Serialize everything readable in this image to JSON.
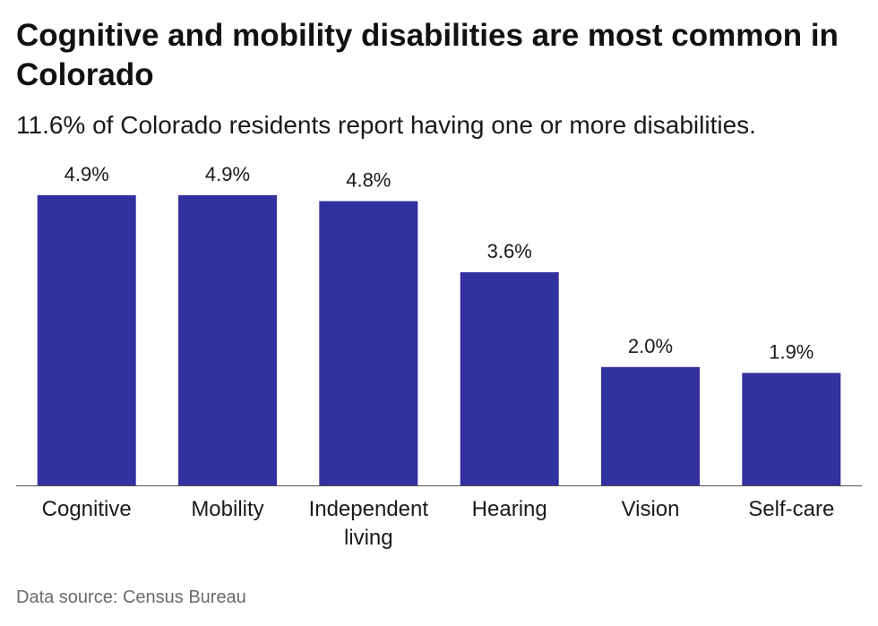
{
  "title": "Cognitive and mobility disabilities are most common in Colorado",
  "subtitle": "11.6% of Colorado residents report having one or more disabilities.",
  "source": "Data source: Census Bureau",
  "colors": {
    "bar": "#3330a0",
    "axis": "#555555",
    "text": "#1a1a1a"
  },
  "chart_data": {
    "type": "bar",
    "categories": [
      "Cognitive",
      "Mobility",
      "Independent living",
      "Hearing",
      "Vision",
      "Self-care"
    ],
    "category_lines": [
      [
        "Cognitive"
      ],
      [
        "Mobility"
      ],
      [
        "Independent",
        "living"
      ],
      [
        "Hearing"
      ],
      [
        "Vision"
      ],
      [
        "Self-care"
      ]
    ],
    "values": [
      4.9,
      4.9,
      4.8,
      3.6,
      2.0,
      1.9
    ],
    "value_labels": [
      "4.9%",
      "4.9%",
      "4.8%",
      "3.6%",
      "2.0%",
      "1.9%"
    ],
    "title": "",
    "xlabel": "",
    "ylabel": "",
    "ylim": [
      0,
      4.9
    ],
    "grid": false,
    "legend": "none"
  }
}
